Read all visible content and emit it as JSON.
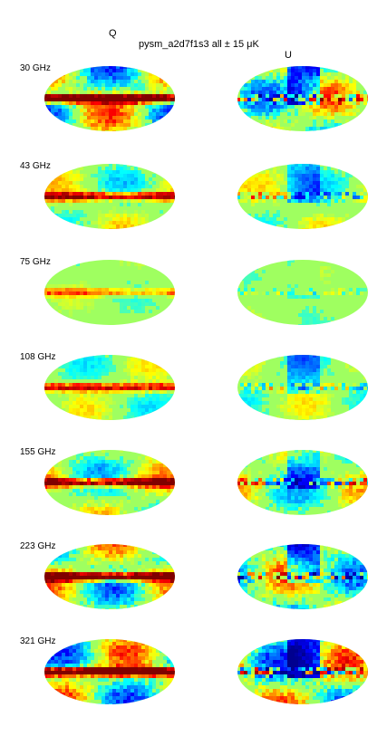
{
  "title": {
    "left": "Q",
    "main": "pysm_a2d7f1s3 all ± 15 μK",
    "right": "U"
  },
  "colormap": {
    "name": "jet",
    "stops": [
      "#00008f",
      "#0000ff",
      "#00ffff",
      "#ffff00",
      "#ff0000",
      "#800000"
    ]
  },
  "rows": [
    {
      "freq": "30 GHz",
      "q_level": 1.0,
      "u_level": 0.85
    },
    {
      "freq": "43 GHz",
      "q_level": 0.55,
      "u_level": 0.45
    },
    {
      "freq": "75 GHz",
      "q_level": 0.25,
      "u_level": 0.18
    },
    {
      "freq": "108 GHz",
      "q_level": 0.45,
      "u_level": 0.4
    },
    {
      "freq": "155 GHz",
      "q_level": 0.7,
      "u_level": 0.6
    },
    {
      "freq": "223 GHz",
      "q_level": 0.9,
      "u_level": 0.85
    },
    {
      "freq": "321 GHz",
      "q_level": 1.0,
      "u_level": 1.0
    }
  ]
}
